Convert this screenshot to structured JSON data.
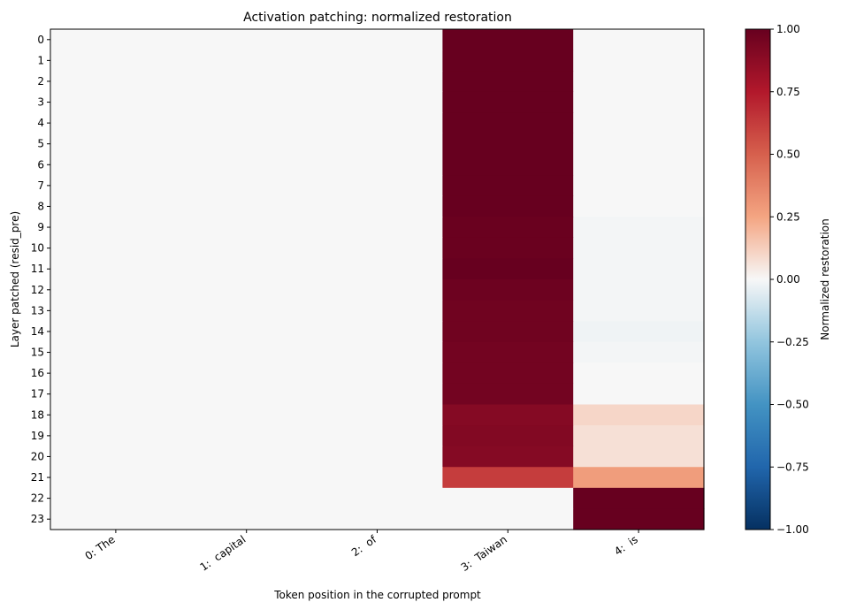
{
  "chart_data": {
    "type": "heatmap",
    "title": "Activation patching: normalized restoration",
    "xlabel": "Token position in the corrupted prompt",
    "ylabel": "Layer patched (resid_pre)",
    "x_categories": [
      "0: The",
      "1:  capital",
      "2:  of",
      "3:  Taiwan",
      "4:  is"
    ],
    "y_categories": [
      "0",
      "1",
      "2",
      "3",
      "4",
      "5",
      "6",
      "7",
      "8",
      "9",
      "10",
      "11",
      "12",
      "13",
      "14",
      "15",
      "16",
      "17",
      "18",
      "19",
      "20",
      "21",
      "22",
      "23"
    ],
    "values": [
      [
        0,
        0,
        0,
        1.0,
        0
      ],
      [
        0,
        0,
        0,
        1.0,
        0
      ],
      [
        0,
        0,
        0,
        1.0,
        0
      ],
      [
        0,
        0,
        0,
        1.0,
        0
      ],
      [
        0,
        0,
        0,
        1.0,
        0
      ],
      [
        0,
        0,
        0,
        1.0,
        0
      ],
      [
        0,
        0,
        0,
        1.0,
        0
      ],
      [
        0,
        0,
        0,
        1.0,
        0
      ],
      [
        0,
        0,
        0,
        1.0,
        0
      ],
      [
        0,
        0,
        0,
        0.99,
        -0.01
      ],
      [
        0,
        0,
        0,
        0.99,
        -0.01
      ],
      [
        0,
        0,
        0,
        1.0,
        -0.01
      ],
      [
        0,
        0,
        0,
        0.98,
        -0.01
      ],
      [
        0,
        0,
        0,
        0.97,
        -0.01
      ],
      [
        0,
        0,
        0,
        0.97,
        -0.02
      ],
      [
        0,
        0,
        0,
        0.96,
        -0.01
      ],
      [
        0,
        0,
        0,
        0.96,
        0
      ],
      [
        0,
        0,
        0,
        0.96,
        0
      ],
      [
        0,
        0,
        0,
        0.9,
        0.1
      ],
      [
        0,
        0,
        0,
        0.91,
        0.07
      ],
      [
        0,
        0,
        0,
        0.9,
        0.07
      ],
      [
        0,
        0,
        0,
        0.62,
        0.28
      ],
      [
        0,
        0,
        0,
        0,
        1.0
      ],
      [
        0,
        0,
        0,
        0,
        1.0
      ]
    ],
    "vmin": -1,
    "vmax": 1,
    "colormap": "RdBu_r",
    "colorbar": {
      "label": "Normalized restoration",
      "ticks": [
        1.0,
        0.75,
        0.5,
        0.25,
        0.0,
        -0.25,
        -0.5,
        -0.75,
        -1.0
      ],
      "tick_labels": [
        "1.00",
        "0.75",
        "0.50",
        "0.25",
        "0.00",
        "−0.25",
        "−0.50",
        "−0.75",
        "−1.00"
      ]
    }
  }
}
